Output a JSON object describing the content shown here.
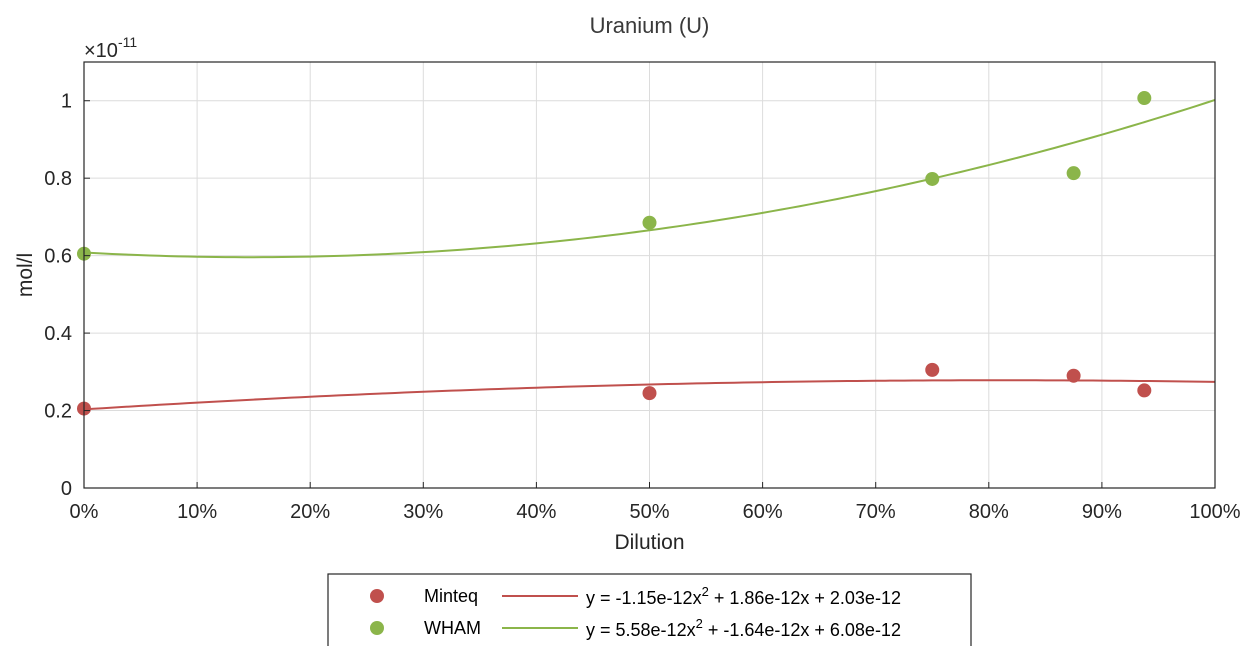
{
  "chart_data": {
    "type": "scatter",
    "title": "Uranium (U)",
    "xlabel": "Dilution",
    "ylabel": "mol/l",
    "y_exponent_label": "×10",
    "y_exponent_power": "-11",
    "xlim": [
      0,
      1
    ],
    "ylim": [
      0,
      1.1e-11
    ],
    "x_ticks": [
      0,
      0.1,
      0.2,
      0.3,
      0.4,
      0.5,
      0.6,
      0.7,
      0.8,
      0.9,
      1.0
    ],
    "x_tick_labels": [
      "0%",
      "10%",
      "20%",
      "30%",
      "40%",
      "50%",
      "60%",
      "70%",
      "80%",
      "90%",
      "100%"
    ],
    "y_ticks": [
      0,
      2e-12,
      4e-12,
      6e-12,
      8e-12,
      1e-11
    ],
    "y_tick_labels": [
      "0",
      "0.2",
      "0.4",
      "0.6",
      "0.8",
      "1"
    ],
    "grid": true,
    "legend_position": "bottom-outside",
    "series": [
      {
        "name": "Minteq",
        "color": "#c0504d",
        "points": [
          {
            "x": 0,
            "y": 2.05e-12
          },
          {
            "x": 0.5,
            "y": 2.45e-12
          },
          {
            "x": 0.75,
            "y": 3.05e-12
          },
          {
            "x": 0.875,
            "y": 2.9e-12
          },
          {
            "x": 0.9375,
            "y": 2.52e-12
          }
        ],
        "fit": {
          "a": -1.15e-12,
          "b": 1.86e-12,
          "c": 2.03e-12
        },
        "fit_label_prefix": "y = -1.15e-12x",
        "fit_label_power": "2",
        "fit_label_suffix": " + 1.86e-12x + 2.03e-12"
      },
      {
        "name": "WHAM",
        "color": "#8bb54a",
        "points": [
          {
            "x": 0,
            "y": 6.05e-12
          },
          {
            "x": 0.5,
            "y": 6.85e-12
          },
          {
            "x": 0.75,
            "y": 7.98e-12
          },
          {
            "x": 0.875,
            "y": 8.13e-12
          },
          {
            "x": 0.9375,
            "y": 1.007e-11
          }
        ],
        "fit": {
          "a": 5.58e-12,
          "b": -1.64e-12,
          "c": 6.08e-12
        },
        "fit_label_prefix": "y = 5.58e-12x",
        "fit_label_power": "2",
        "fit_label_suffix": " + -1.64e-12x + 6.08e-12"
      }
    ]
  }
}
